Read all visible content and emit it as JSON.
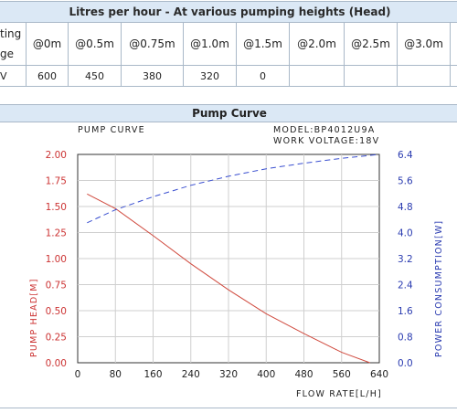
{
  "table": {
    "title": "Litres per hour - At various pumping heights (Head)",
    "row_label_lines": [
      "ting",
      "ge"
    ],
    "value_row_label": "V",
    "headers": [
      "@0m",
      "@0.5m",
      "@0.75m",
      "@1.0m",
      "@1.5m",
      "@2.0m",
      "@2.5m",
      "@3.0m"
    ],
    "values": [
      "600",
      "450",
      "380",
      "320",
      "0",
      "",
      "",
      ""
    ]
  },
  "section": {
    "title": "Pump Curve"
  },
  "chart_data": {
    "type": "line",
    "title": "PUMP CURVE",
    "model_line": "MODEL:BP4012U9A",
    "voltage_line": "WORK VOLTAGE:18V",
    "xlabel": "FLOW RATE[L/H]",
    "ylabel_left": "PUMP HEAD[M]",
    "ylabel_right": "POWER CONSUMPTION[W]",
    "x_ticks": [
      "0",
      "80",
      "160",
      "240",
      "320",
      "400",
      "480",
      "560",
      "640"
    ],
    "y_left_ticks": [
      "0.00",
      "0.25",
      "0.50",
      "0.75",
      "1.00",
      "1.25",
      "1.50",
      "1.75",
      "2.00"
    ],
    "y_right_ticks": [
      "0.0",
      "0.8",
      "1.6",
      "2.4",
      "3.2",
      "4.0",
      "4.8",
      "5.6",
      "6.4"
    ],
    "xlim": [
      0,
      640
    ],
    "ylim_left": [
      0,
      2
    ],
    "ylim_right": [
      0,
      6.4
    ],
    "grid": true,
    "series": [
      {
        "name": "PUMP HEAD[M]",
        "axis": "left",
        "color": "#d04a3e",
        "dash": "solid",
        "x": [
          20,
          80,
          160,
          240,
          320,
          400,
          480,
          560,
          620
        ],
        "y": [
          1.62,
          1.48,
          1.22,
          0.95,
          0.7,
          0.47,
          0.28,
          0.1,
          0.0
        ]
      },
      {
        "name": "POWER CONSUMPTION[W]",
        "axis": "right",
        "color": "#3a4fd0",
        "dash": "dashed",
        "x": [
          20,
          80,
          160,
          240,
          320,
          400,
          480,
          560,
          640
        ],
        "y": [
          4.3,
          4.7,
          5.1,
          5.45,
          5.73,
          5.96,
          6.13,
          6.28,
          6.4
        ]
      }
    ]
  }
}
